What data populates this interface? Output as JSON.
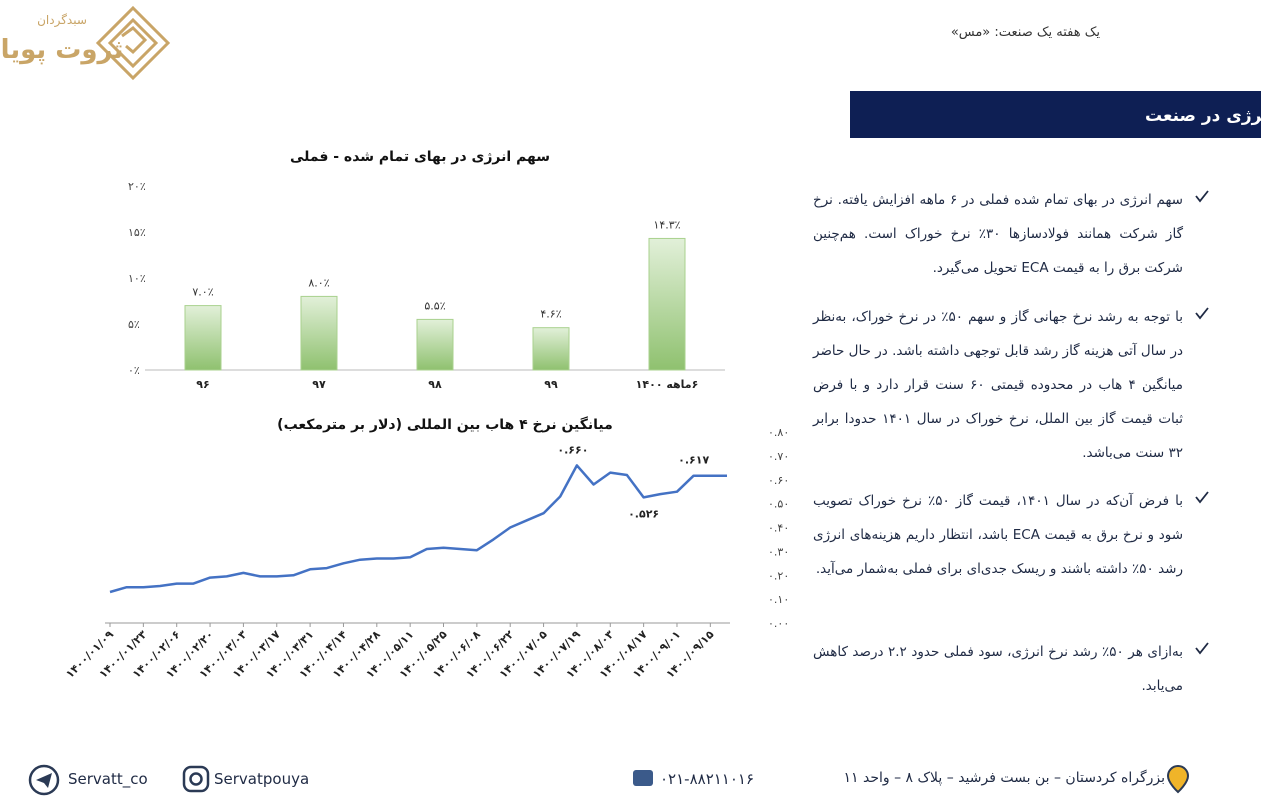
{
  "header": {
    "brand_small": "سبدگردان",
    "brand_name": "ثروت پویا",
    "report": "یک هفته یک صنعت: «مس»"
  },
  "section_title": "بررسی انرژی در صنعت",
  "bullets": [
    "سهم انرژی در بهای تمام شده فملی در ۶ ماهه افزایش یافته. نرخ گاز شرکت همانند فولادسازها ۳۰٪ نرخ خوراک است. هم‌چنین شرکت برق را به قیمت ECA تحویل می‌گیرد.",
    "با توجه به رشد نرخ جهانی گاز و سهم ۵۰٪ در نرخ خوراک، به‌نظر در سال آتی هزینه گاز رشد قابل توجهی داشته باشد. در حال حاضر میانگین ۴ هاب در محدوده قیمتی ۶۰ سنت قرار دارد و با فرض ثبات قیمت گاز بین الملل، نرخ خوراک در سال ۱۴۰۱ حدودا برابر ۳۲ سنت می‌باشد.",
    "با فرض آن‌که در سال ۱۴۰۱، قیمت گاز ۵۰٪ نرخ خوراک تصویب شود و نرخ برق به قیمت ECA باشد، انتظار داریم هزینه‌های انرژی رشد ۵۰٪ داشته باشند و ریسک جدی‌ای برای فملی به‌شمار می‌آید.",
    "به‌ازای هر ۵۰٪ رشد نرخ انرژی، سود فملی حدود ۲.۲ درصد کاهش می‌یابد."
  ],
  "chart_data": [
    {
      "type": "bar",
      "title": "سهم انرژی در بهای تمام شده - فملی",
      "categories": [
        "۹۶",
        "۹۷",
        "۹۸",
        "۹۹",
        "۶ماهه ۱۴۰۰"
      ],
      "values": [
        7.0,
        8.0,
        5.5,
        4.6,
        14.3
      ],
      "value_labels": [
        "۷.۰٪",
        "۸.۰٪",
        "۵.۵٪",
        "۴.۶٪",
        "۱۴.۳٪"
      ],
      "color": "#a9d18e",
      "ylim": [
        0,
        20
      ],
      "yticks": [
        {
          "value": 0,
          "label": "۰٪"
        },
        {
          "value": 5,
          "label": "۵٪"
        },
        {
          "value": 10,
          "label": "۱۰٪"
        },
        {
          "value": 15,
          "label": "۱۵٪"
        },
        {
          "value": 20,
          "label": "۲۰٪"
        }
      ]
    },
    {
      "type": "line",
      "title": "میانگین نرخ ۴ هاب بین المللی (دلار بر مترمکعب)",
      "categories": [
        "۱۴۰۰/۰۱/۰۹",
        null,
        "۱۴۰۰/۰۱/۲۳",
        null,
        "۱۴۰۰/۰۲/۰۶",
        null,
        "۱۴۰۰/۰۲/۲۰",
        null,
        "۱۴۰۰/۰۳/۰۳",
        null,
        "۱۴۰۰/۰۳/۱۷",
        null,
        "۱۴۰۰/۰۳/۳۱",
        null,
        "۱۴۰۰/۰۴/۱۴",
        null,
        "۱۴۰۰/۰۴/۲۸",
        null,
        "۱۴۰۰/۰۵/۱۱",
        null,
        "۱۴۰۰/۰۵/۲۵",
        null,
        "۱۴۰۰/۰۶/۰۸",
        null,
        "۱۴۰۰/۰۶/۲۲",
        null,
        "۱۴۰۰/۰۷/۰۵",
        null,
        "۱۴۰۰/۰۷/۱۹",
        null,
        "۱۴۰۰/۰۸/۰۳",
        null,
        "۱۴۰۰/۰۸/۱۷",
        null,
        "۱۴۰۰/۰۹/۰۱",
        null,
        "۱۴۰۰/۰۹/۱۵",
        null
      ],
      "values": [
        0.13,
        0.15,
        0.15,
        0.155,
        0.165,
        0.165,
        0.19,
        0.195,
        0.21,
        0.195,
        0.195,
        0.2,
        0.225,
        0.23,
        0.25,
        0.265,
        0.27,
        0.27,
        0.275,
        0.31,
        0.315,
        0.31,
        0.305,
        0.35,
        0.4,
        0.43,
        0.46,
        0.53,
        0.66,
        0.58,
        0.63,
        0.62,
        0.526,
        0.54,
        0.55,
        0.617,
        0.617,
        0.617
      ],
      "color": "#4472c4",
      "annotations": [
        "۰.۶۶۰",
        "۰.۵۲۶",
        "۰.۶۱۷"
      ],
      "ylim": [
        0,
        0.8
      ],
      "yticks": [
        {
          "value": 0,
          "label": "۰.۰۰"
        },
        {
          "value": 0.1,
          "label": "۰.۱۰"
        },
        {
          "value": 0.2,
          "label": "۰.۲۰"
        },
        {
          "value": 0.3,
          "label": "۰.۳۰"
        },
        {
          "value": 0.4,
          "label": "۰.۴۰"
        },
        {
          "value": 0.5,
          "label": "۰.۵۰"
        },
        {
          "value": 0.6,
          "label": "۰.۶۰"
        },
        {
          "value": 0.7,
          "label": "۰.۷۰"
        },
        {
          "value": 0.8,
          "label": "۰.۸۰"
        }
      ]
    }
  ],
  "footer": {
    "telegram": "Servatt_co",
    "instagram": "Servatpouya",
    "phone": "۰۲۱-۸۸۲۱۱۰۱۶",
    "address": "بزرگراه کردستان – بن بست فرشید – پلاک ۸ – واحد ۱۱"
  }
}
